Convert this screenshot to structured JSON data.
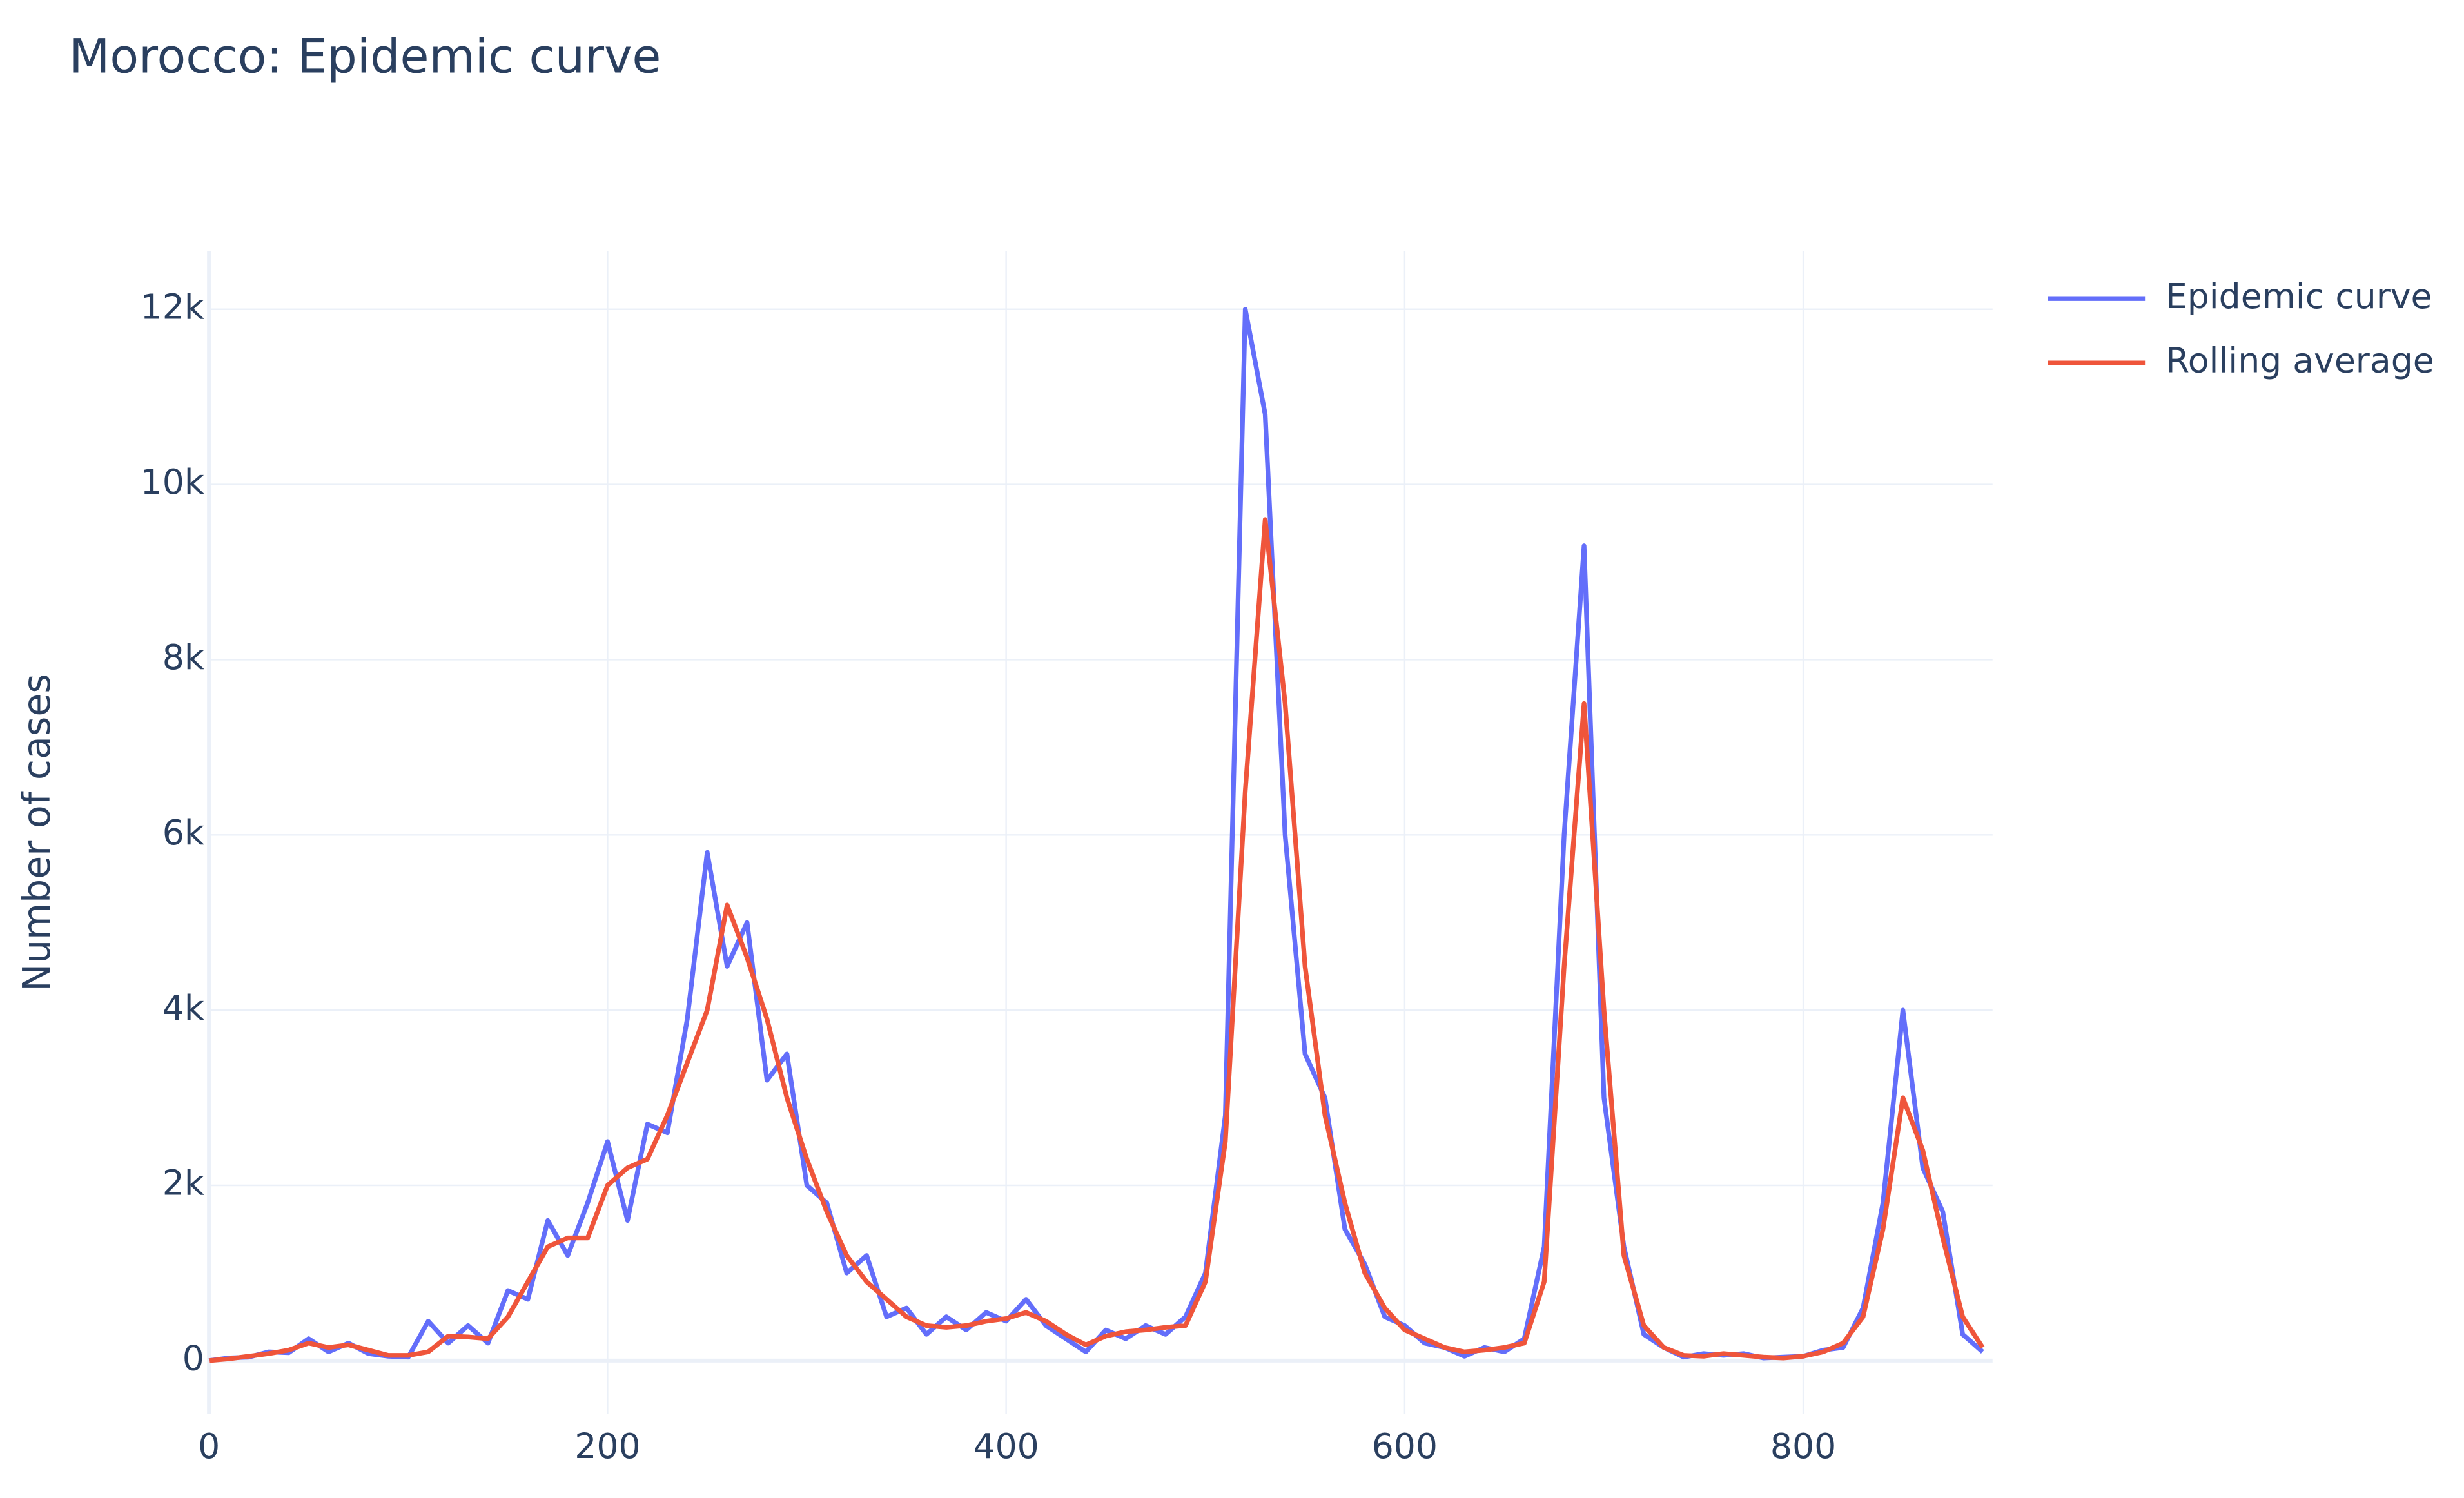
{
  "chart_data": {
    "type": "line",
    "title": "Morocco: Epidemic curve",
    "y_label": "Number of cases",
    "x": [
      0,
      10,
      20,
      30,
      40,
      50,
      60,
      70,
      80,
      90,
      100,
      110,
      120,
      130,
      140,
      150,
      160,
      170,
      180,
      190,
      200,
      210,
      220,
      230,
      240,
      250,
      260,
      270,
      280,
      290,
      300,
      310,
      320,
      330,
      340,
      350,
      360,
      370,
      380,
      390,
      400,
      410,
      420,
      430,
      440,
      450,
      460,
      470,
      480,
      490,
      500,
      510,
      520,
      530,
      540,
      550,
      560,
      570,
      580,
      590,
      600,
      610,
      620,
      630,
      640,
      650,
      660,
      670,
      680,
      690,
      700,
      710,
      720,
      730,
      740,
      750,
      760,
      770,
      780,
      790,
      800,
      810,
      820,
      830,
      840,
      850,
      860,
      870,
      880,
      890
    ],
    "series": [
      {
        "name": "Epidemic curve",
        "color": "#636efa",
        "values": [
          0,
          30,
          40,
          100,
          90,
          250,
          100,
          200,
          80,
          50,
          40,
          450,
          200,
          400,
          200,
          800,
          700,
          1600,
          1200,
          1800,
          2500,
          1600,
          2700,
          2600,
          3900,
          5800,
          4500,
          5000,
          3200,
          3500,
          2000,
          1800,
          1000,
          1200,
          500,
          600,
          300,
          500,
          350,
          550,
          450,
          700,
          400,
          250,
          100,
          350,
          250,
          400,
          300,
          500,
          1000,
          2800,
          12000,
          10800,
          6000,
          3500,
          3000,
          1500,
          1100,
          500,
          400,
          200,
          150,
          50,
          150,
          100,
          250,
          1300,
          6000,
          9300,
          3000,
          1300,
          300,
          150,
          40,
          80,
          60,
          80,
          30,
          40,
          50,
          120,
          150,
          600,
          1800,
          4000,
          2200,
          1700,
          300,
          100
        ]
      },
      {
        "name": "Rolling average",
        "color": "#ef553b",
        "values": [
          0,
          20,
          50,
          80,
          120,
          200,
          150,
          180,
          120,
          60,
          60,
          100,
          280,
          270,
          250,
          500,
          900,
          1300,
          1400,
          1400,
          2000,
          2200,
          2300,
          2800,
          3400,
          4000,
          5200,
          4600,
          3900,
          3000,
          2300,
          1700,
          1200,
          900,
          700,
          500,
          400,
          380,
          400,
          450,
          480,
          550,
          450,
          300,
          180,
          280,
          330,
          350,
          380,
          400,
          900,
          2500,
          6500,
          9600,
          7500,
          4500,
          2800,
          1800,
          1000,
          600,
          350,
          250,
          150,
          100,
          120,
          150,
          200,
          900,
          4500,
          7500,
          4000,
          1200,
          400,
          150,
          60,
          50,
          80,
          60,
          40,
          30,
          50,
          100,
          200,
          500,
          1500,
          3000,
          2400,
          1400,
          500,
          150
        ]
      }
    ],
    "xlim": [
      0,
      895
    ],
    "xticks": [
      0,
      200,
      400,
      600,
      800
    ],
    "ylim": [
      -610,
      12660
    ],
    "yticks": [
      0,
      {
        "value": 2000,
        "label": "2k"
      },
      {
        "value": 4000,
        "label": "4k"
      },
      {
        "value": 6000,
        "label": "6k"
      },
      {
        "value": 8000,
        "label": "8k"
      },
      {
        "value": 10000,
        "label": "10k"
      },
      {
        "value": 12000,
        "label": "12k"
      }
    ],
    "grid": true,
    "legend": "top-right"
  }
}
